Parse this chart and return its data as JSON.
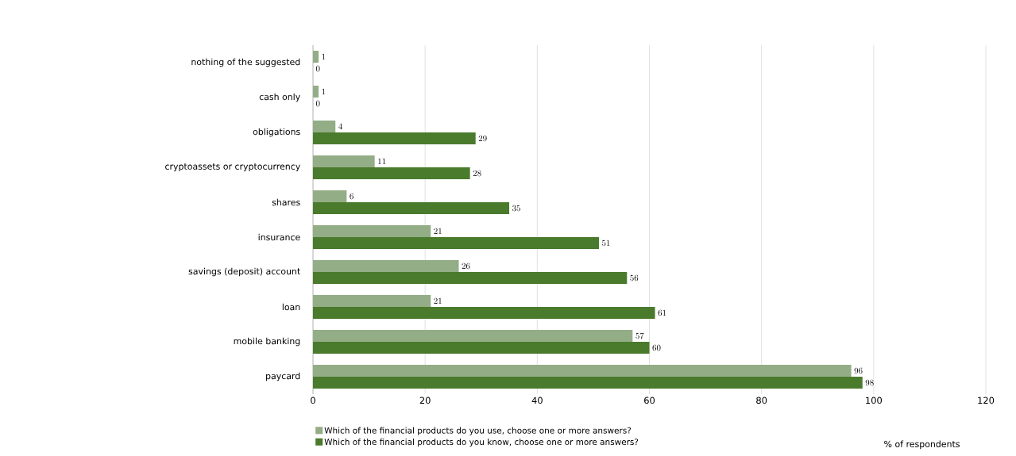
{
  "chart_data": {
    "type": "bar",
    "orientation": "horizontal",
    "xlabel": "% of respondents",
    "categories": [
      "nothing of the suggested",
      "cash only",
      "obligations",
      "cryptoassets or cryptocurrency",
      "shares",
      "insurance",
      "savings (deposit) account",
      "loan",
      "mobile banking",
      "paycard"
    ],
    "series": [
      {
        "name": "Which of the financial products do you use, choose one or more answers?",
        "color": "#93ad86",
        "values": [
          1,
          1,
          4,
          11,
          6,
          21,
          26,
          21,
          57,
          96
        ]
      },
      {
        "name": "Which of the financial products do you know, choose one or more answers?",
        "color": "#4a7a2c",
        "values": [
          0,
          0,
          29,
          28,
          35,
          51,
          56,
          61,
          60,
          98
        ]
      }
    ],
    "xlim": [
      0,
      120
    ],
    "xticks": [
      0,
      20,
      40,
      60,
      80,
      100,
      120
    ],
    "grid": "x",
    "data_labels": true,
    "legend": "bottom left"
  }
}
